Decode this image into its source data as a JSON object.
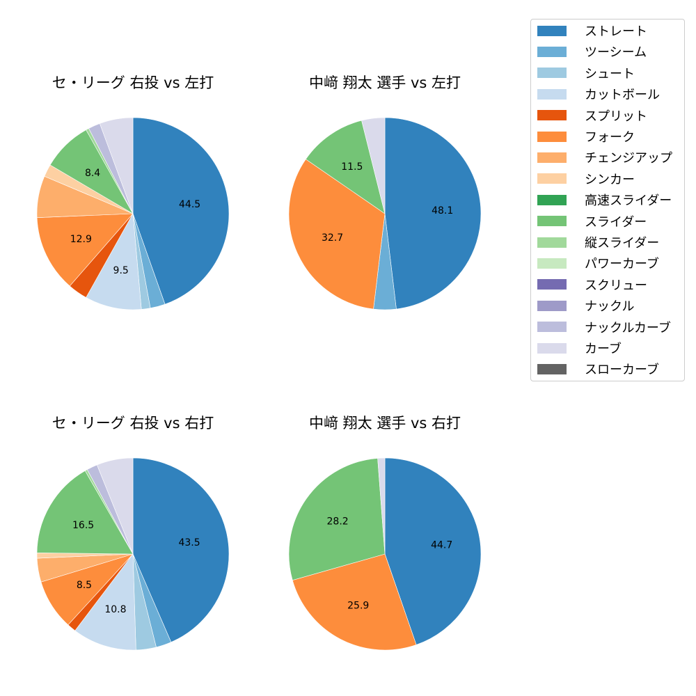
{
  "chart_data": [
    {
      "type": "pie",
      "title": "セ・リーグ 右投 vs 左打",
      "categories": [
        "ストレート",
        "ツーシーム",
        "シュート",
        "カットボール",
        "スプリット",
        "フォーク",
        "チェンジアップ",
        "シンカー",
        "スライダー",
        "縦スライダー",
        "ナックルカーブ",
        "カーブ"
      ],
      "values": [
        44.5,
        2.5,
        1.5,
        9.5,
        3.3,
        12.9,
        7.0,
        2.1,
        8.4,
        0.5,
        2.0,
        5.6
      ],
      "labels_shown": [
        "44.5",
        "9.5",
        "12.9",
        "8.4"
      ],
      "start_angle": 90,
      "direction": "clockwise"
    },
    {
      "type": "pie",
      "title": "中﨑 翔太 選手 vs 左打",
      "categories": [
        "ストレート",
        "ツーシーム",
        "フォーク",
        "スライダー",
        "カーブ"
      ],
      "values": [
        48.1,
        3.8,
        32.7,
        11.5,
        3.9
      ],
      "labels_shown": [
        "48.1",
        "32.7",
        "11.5"
      ],
      "start_angle": 90,
      "direction": "clockwise"
    },
    {
      "type": "pie",
      "title": "セ・リーグ 右投 vs 右打",
      "categories": [
        "ストレート",
        "ツーシーム",
        "シュート",
        "カットボール",
        "スプリット",
        "フォーク",
        "チェンジアップ",
        "シンカー",
        "スライダー",
        "縦スライダー",
        "ナックルカーブ",
        "カーブ"
      ],
      "values": [
        43.5,
        2.6,
        3.4,
        10.8,
        1.5,
        8.5,
        4.0,
        0.9,
        16.5,
        0.4,
        1.8,
        6.1
      ],
      "labels_shown": [
        "43.5",
        "10.8",
        "8.5",
        "16.5"
      ],
      "start_angle": 90,
      "direction": "clockwise"
    },
    {
      "type": "pie",
      "title": "中﨑 翔太 選手 vs 右打",
      "categories": [
        "ストレート",
        "フォーク",
        "スライダー",
        "カーブ"
      ],
      "values": [
        44.7,
        25.9,
        28.2,
        1.2
      ],
      "labels_shown": [
        "44.7",
        "25.9",
        "28.2"
      ],
      "start_angle": 90,
      "direction": "clockwise"
    }
  ],
  "panels": [
    {
      "title": "セ・リーグ 右投 vs 左打"
    },
    {
      "title": "中﨑 翔太 選手 vs 左打"
    },
    {
      "title": "セ・リーグ 右投 vs 右打"
    },
    {
      "title": "中﨑 翔太 選手 vs 右打"
    }
  ],
  "legend": {
    "position": "upper right",
    "items": [
      {
        "label": "ストレート",
        "color": "#3182bd"
      },
      {
        "label": "ツーシーム",
        "color": "#6baed6"
      },
      {
        "label": "シュート",
        "color": "#9ecae1"
      },
      {
        "label": "カットボール",
        "color": "#c6dbef"
      },
      {
        "label": "スプリット",
        "color": "#e6550d"
      },
      {
        "label": "フォーク",
        "color": "#fd8d3c"
      },
      {
        "label": "チェンジアップ",
        "color": "#fdae6b"
      },
      {
        "label": "シンカー",
        "color": "#fdd0a2"
      },
      {
        "label": "高速スライダー",
        "color": "#31a354"
      },
      {
        "label": "スライダー",
        "color": "#74c476"
      },
      {
        "label": "縦スライダー",
        "color": "#a1d99b"
      },
      {
        "label": "パワーカーブ",
        "color": "#c7e9c0"
      },
      {
        "label": "スクリュー",
        "color": "#756bb1"
      },
      {
        "label": "ナックル",
        "color": "#9e9ac8"
      },
      {
        "label": "ナックルカーブ",
        "color": "#bcbddc"
      },
      {
        "label": "カーブ",
        "color": "#dadaeb"
      },
      {
        "label": "スローカーブ",
        "color": "#636363"
      }
    ]
  }
}
